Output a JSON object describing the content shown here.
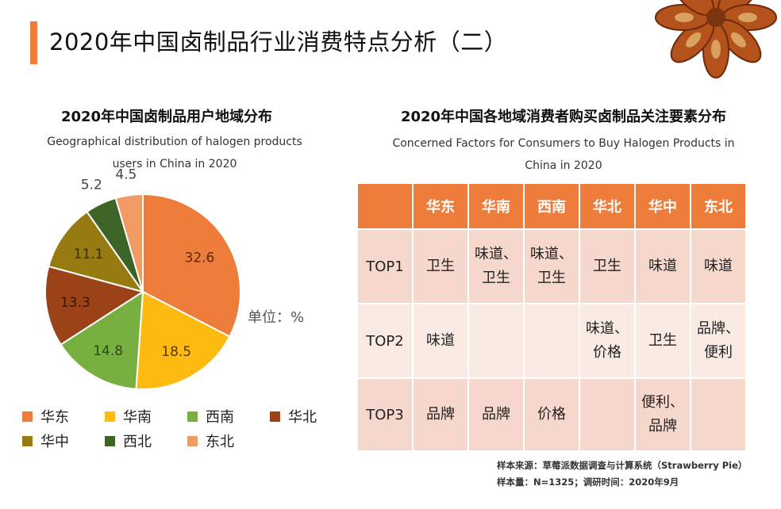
{
  "page_title": "2020年中国卤制品行业消费特点分析（二）",
  "pie_section": {
    "title": "2020年中国卤制品用户地域分布",
    "subtitle_en_line1": "Geographical distribution of halogen products",
    "subtitle_en_line2": "users in China in 2020",
    "unit_label": "单位：%"
  },
  "chart_data": {
    "type": "pie",
    "categories": [
      "华东",
      "华南",
      "西南",
      "华北",
      "华中",
      "西北",
      "东北"
    ],
    "values": [
      32.6,
      18.5,
      14.8,
      13.3,
      11.1,
      5.2,
      4.5
    ],
    "value_labels": [
      "32.6",
      "18.5",
      "14.8",
      "13.3",
      "11.1",
      "5.2",
      "4.5"
    ],
    "colors": [
      "#EE7C3A",
      "#FDBB12",
      "#77B041",
      "#9C4219",
      "#977A10",
      "#3D6327",
      "#F19A63"
    ],
    "legend_placement": "bottom"
  },
  "table_section": {
    "title": "2020年中国各地域消费者购买卤制品关注要素分布",
    "subtitle_en_line1": "Concerned Factors for Consumers to Buy Halogen Products in",
    "subtitle_en_line2": "China in 2020",
    "header_colors": {
      "header_bg": "#EE7C3A",
      "row_dark": "#F6D7CC",
      "row_light": "#FAEAE4"
    },
    "columns": [
      "",
      "华东",
      "华南",
      "西南",
      "华北",
      "华中",
      "东北"
    ],
    "rows": [
      {
        "label": "TOP1",
        "cells": [
          [
            "卫生"
          ],
          [
            "味道、",
            "卫生"
          ],
          [
            "味道、",
            "卫生"
          ],
          [
            "卫生"
          ],
          [
            "味道"
          ],
          [
            "味道"
          ]
        ]
      },
      {
        "label": "TOP2",
        "cells": [
          [
            "味道"
          ],
          [],
          [],
          [
            "味道、",
            "价格"
          ],
          [
            "卫生"
          ],
          [
            "品牌、",
            "便利"
          ]
        ]
      },
      {
        "label": "TOP3",
        "cells": [
          [
            "品牌"
          ],
          [
            "品牌"
          ],
          [
            "价格"
          ],
          [],
          [
            "便利、",
            "品牌"
          ],
          []
        ]
      }
    ]
  },
  "source": {
    "line1": "样本来源：草莓派数据调查与计算系统（Strawberry Pie）",
    "line2": "样本量：N=1325；调研时间：2020年9月"
  }
}
